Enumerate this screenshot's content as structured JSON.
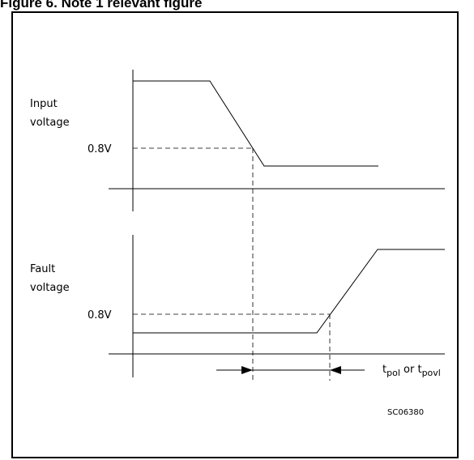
{
  "figure": {
    "caption": "Figure 6. Note 1 relevant figure",
    "ref_code": "SC06380"
  },
  "input_panel": {
    "label_line1": "Input",
    "label_line2": "voltage",
    "threshold": "0.8V"
  },
  "fault_panel": {
    "label_line1": "Fault",
    "label_line2": "voltage",
    "threshold": "0.8V"
  },
  "timing": {
    "t1_main": "t",
    "t1_sub": "pol",
    "or_text": " or ",
    "t2_main": "t",
    "t2_sub": "povl"
  }
}
